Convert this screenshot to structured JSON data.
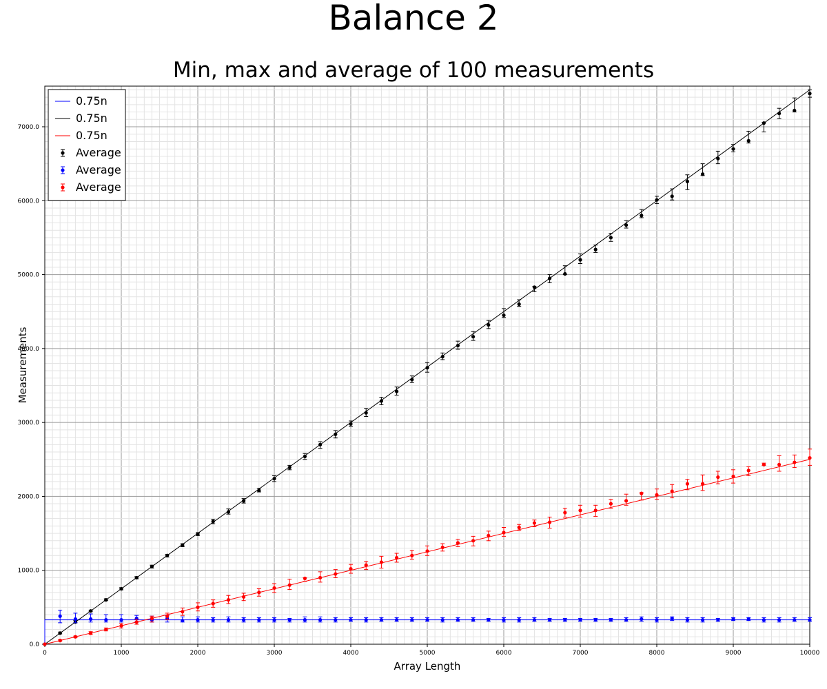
{
  "title": "Balance 2",
  "subtitle": "Min, max and average of 100 measurements",
  "chart_data": {
    "type": "scatter",
    "xlabel": "Array Length",
    "ylabel": "Measurements",
    "xlim": [
      0,
      10000
    ],
    "ylim": [
      0,
      7550
    ],
    "x_ticks": [
      "0",
      "1000",
      "2000",
      "3000",
      "4000",
      "5000",
      "6000",
      "7000",
      "8000",
      "9000",
      "10000"
    ],
    "y_ticks": [
      "0.0",
      "1000.0",
      "2000.0",
      "3000.0",
      "4000.0",
      "5000.0",
      "6000.0",
      "7000.0"
    ],
    "grid": true,
    "legend_position": "top-left",
    "legend": [
      "0.75n",
      "0.75n",
      "0.75n",
      "Average",
      "Average",
      "Average"
    ],
    "lines": [
      {
        "name": "0.75n",
        "color": "#0000ff",
        "x": [
          0,
          0,
          10000
        ],
        "y": [
          0,
          330,
          330
        ]
      },
      {
        "name": "0.75n",
        "color": "#000000",
        "x": [
          0,
          10000
        ],
        "y": [
          0,
          7500
        ]
      },
      {
        "name": "0.75n",
        "color": "#ff0000",
        "x": [
          0,
          10000
        ],
        "y": [
          0,
          2500
        ]
      }
    ],
    "series": [
      {
        "name": "Average",
        "color": "#000000",
        "x": [
          0,
          200,
          400,
          600,
          800,
          1000,
          1200,
          1400,
          1600,
          1800,
          2000,
          2200,
          2400,
          2600,
          2800,
          3000,
          3200,
          3400,
          3600,
          3800,
          4000,
          4200,
          4400,
          4600,
          4800,
          5000,
          5200,
          5400,
          5600,
          5800,
          6000,
          6200,
          6400,
          6600,
          6800,
          7000,
          7200,
          7400,
          7600,
          7800,
          8000,
          8200,
          8400,
          8600,
          8800,
          9000,
          9200,
          9400,
          9600,
          9800,
          10000
        ],
        "y": [
          0,
          150,
          300,
          450,
          600,
          750,
          900,
          1050,
          1200,
          1340,
          1490,
          1660,
          1790,
          1940,
          2080,
          2240,
          2390,
          2540,
          2700,
          2840,
          2980,
          3130,
          3290,
          3420,
          3580,
          3740,
          3890,
          4040,
          4160,
          4320,
          4450,
          4600,
          4830,
          4950,
          5010,
          5200,
          5340,
          5500,
          5670,
          5800,
          6010,
          6060,
          6260,
          6360,
          6570,
          6700,
          6810,
          7050,
          7180,
          7220,
          7450
        ],
        "min": [
          0,
          140,
          290,
          440,
          590,
          735,
          885,
          1030,
          1180,
          1320,
          1470,
          1630,
          1760,
          1910,
          2060,
          2200,
          2360,
          2500,
          2650,
          2790,
          2950,
          3080,
          3240,
          3370,
          3540,
          3680,
          3850,
          3990,
          4110,
          4270,
          4420,
          4570,
          4770,
          4890,
          5000,
          5150,
          5300,
          5450,
          5630,
          5770,
          5960,
          6010,
          6150,
          6340,
          6500,
          6660,
          6780,
          6930,
          7110,
          7200,
          7400
        ],
        "max": [
          0,
          165,
          320,
          460,
          615,
          765,
          915,
          1070,
          1215,
          1360,
          1510,
          1690,
          1830,
          1970,
          2110,
          2280,
          2420,
          2580,
          2740,
          2890,
          3020,
          3190,
          3340,
          3480,
          3630,
          3810,
          3940,
          4100,
          4230,
          4380,
          4540,
          4660,
          4840,
          5000,
          5120,
          5280,
          5400,
          5560,
          5730,
          5880,
          6060,
          6160,
          6350,
          6500,
          6670,
          6760,
          6940,
          7060,
          7250,
          7390,
          7500
        ]
      },
      {
        "name": "Average",
        "color": "#0000ff",
        "x": [
          0,
          200,
          400,
          600,
          800,
          1000,
          1200,
          1400,
          1600,
          1800,
          2000,
          2200,
          2400,
          2600,
          2800,
          3000,
          3200,
          3400,
          3600,
          3800,
          4000,
          4200,
          4400,
          4600,
          4800,
          5000,
          5200,
          5400,
          5600,
          5800,
          6000,
          6200,
          6400,
          6600,
          6800,
          7000,
          7200,
          7400,
          7600,
          7800,
          8000,
          8200,
          8400,
          8600,
          8800,
          9000,
          9200,
          9400,
          9600,
          9800,
          10000
        ],
        "y": [
          0,
          380,
          340,
          340,
          330,
          330,
          350,
          330,
          350,
          320,
          330,
          330,
          330,
          330,
          330,
          330,
          330,
          330,
          330,
          330,
          330,
          330,
          330,
          330,
          330,
          330,
          330,
          330,
          330,
          330,
          330,
          330,
          330,
          330,
          330,
          330,
          330,
          330,
          330,
          340,
          330,
          350,
          330,
          330,
          330,
          340,
          340,
          330,
          330,
          330,
          330
        ],
        "min": [
          0,
          290,
          290,
          300,
          300,
          300,
          300,
          300,
          300,
          300,
          300,
          300,
          300,
          300,
          300,
          300,
          300,
          300,
          300,
          300,
          310,
          300,
          310,
          310,
          310,
          310,
          300,
          310,
          310,
          310,
          300,
          300,
          310,
          310,
          310,
          310,
          310,
          310,
          310,
          310,
          300,
          320,
          300,
          300,
          310,
          320,
          320,
          300,
          300,
          310,
          310
        ],
        "max": [
          0,
          460,
          420,
          410,
          400,
          400,
          390,
          380,
          390,
          370,
          370,
          360,
          370,
          360,
          360,
          360,
          350,
          370,
          370,
          360,
          360,
          360,
          360,
          360,
          360,
          360,
          360,
          360,
          360,
          350,
          360,
          360,
          360,
          350,
          350,
          350,
          350,
          350,
          360,
          370,
          360,
          370,
          360,
          360,
          350,
          360,
          360,
          360,
          360,
          360,
          360
        ]
      },
      {
        "name": "Average",
        "color": "#ff0000",
        "x": [
          0,
          200,
          400,
          600,
          800,
          1000,
          1200,
          1400,
          1600,
          1800,
          2000,
          2200,
          2400,
          2600,
          2800,
          3000,
          3200,
          3400,
          3600,
          3800,
          4000,
          4200,
          4400,
          4600,
          4800,
          5000,
          5200,
          5400,
          5600,
          5800,
          6000,
          6200,
          6400,
          6600,
          6800,
          7000,
          7200,
          7400,
          7600,
          7800,
          8000,
          8200,
          8400,
          8600,
          8800,
          9000,
          9200,
          9400,
          9600,
          9800,
          10000
        ],
        "y": [
          0,
          50,
          100,
          150,
          200,
          250,
          300,
          350,
          380,
          440,
          500,
          550,
          600,
          640,
          700,
          760,
          800,
          890,
          900,
          950,
          1020,
          1070,
          1110,
          1170,
          1200,
          1260,
          1310,
          1370,
          1400,
          1470,
          1510,
          1580,
          1640,
          1650,
          1780,
          1810,
          1810,
          1900,
          1940,
          2040,
          2020,
          2070,
          2170,
          2170,
          2260,
          2270,
          2350,
          2430,
          2430,
          2460,
          2520
        ],
        "min": [
          0,
          40,
          90,
          130,
          180,
          220,
          270,
          300,
          330,
          390,
          450,
          500,
          550,
          590,
          650,
          700,
          740,
          850,
          840,
          900,
          960,
          1010,
          1030,
          1110,
          1150,
          1200,
          1260,
          1320,
          1330,
          1400,
          1460,
          1540,
          1590,
          1570,
          1720,
          1720,
          1730,
          1840,
          1880,
          1950,
          1960,
          1980,
          2090,
          2080,
          2170,
          2180,
          2280,
          2420,
          2340,
          2390,
          2420
        ],
        "max": [
          0,
          60,
          110,
          170,
          220,
          280,
          340,
          380,
          420,
          490,
          560,
          600,
          660,
          690,
          750,
          820,
          880,
          900,
          980,
          1010,
          1080,
          1120,
          1190,
          1230,
          1270,
          1330,
          1360,
          1420,
          1460,
          1530,
          1580,
          1620,
          1680,
          1720,
          1840,
          1880,
          1880,
          1960,
          2030,
          2050,
          2100,
          2160,
          2230,
          2290,
          2340,
          2360,
          2400,
          2450,
          2550,
          2560,
          2640
        ]
      }
    ]
  }
}
